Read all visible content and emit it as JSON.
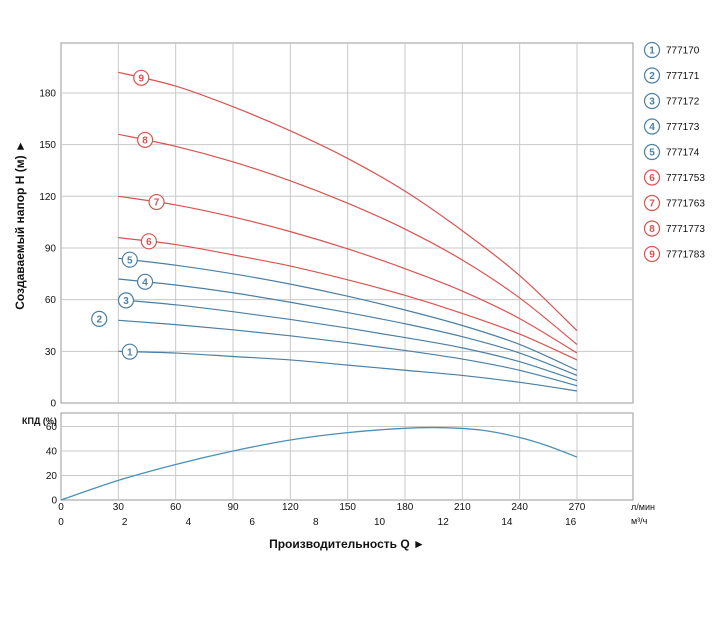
{
  "chart_data": [
    {
      "type": "line",
      "ylabel": "Создаваемый напор H (м) ►",
      "ylim": [
        0,
        200
      ],
      "yticks": [
        0,
        30,
        60,
        90,
        120,
        150,
        180
      ],
      "x_unit": "л/мин",
      "xlim": [
        0,
        270
      ],
      "xticks": [
        0,
        30,
        60,
        90,
        120,
        150,
        180,
        210,
        240,
        270
      ],
      "grid": true,
      "legend": "right",
      "series": [
        {
          "id": "1",
          "name": "777170",
          "color": "#4a7fa6",
          "x": [
            30,
            60,
            90,
            120,
            150,
            180,
            210,
            240,
            270
          ],
          "y": [
            30,
            29,
            27,
            25,
            22,
            19,
            16,
            12,
            7
          ]
        },
        {
          "id": "2",
          "name": "777171",
          "color": "#4a7fa6",
          "x": [
            30,
            60,
            90,
            120,
            150,
            180,
            210,
            240,
            270
          ],
          "y": [
            48,
            45.5,
            42.5,
            39,
            35,
            30.5,
            25.5,
            19,
            10
          ]
        },
        {
          "id": "3",
          "name": "777172",
          "color": "#4a7fa6",
          "x": [
            30,
            60,
            90,
            120,
            150,
            180,
            210,
            240,
            270
          ],
          "y": [
            60,
            57,
            53,
            48.5,
            43.5,
            38,
            32,
            24,
            13
          ]
        },
        {
          "id": "4",
          "name": "777173",
          "color": "#4a7fa6",
          "x": [
            30,
            60,
            90,
            120,
            150,
            180,
            210,
            240,
            270
          ],
          "y": [
            72,
            68.5,
            64,
            58.5,
            52.5,
            46,
            38.5,
            29,
            16
          ]
        },
        {
          "id": "5",
          "name": "777174",
          "color": "#4a7fa6",
          "x": [
            30,
            60,
            90,
            120,
            150,
            180,
            210,
            240,
            270
          ],
          "y": [
            84,
            80,
            75,
            69,
            62,
            54,
            45,
            34,
            19
          ]
        },
        {
          "id": "6",
          "name": "7771753",
          "color": "#d9534f",
          "x": [
            30,
            60,
            90,
            120,
            150,
            180,
            210,
            240,
            270
          ],
          "y": [
            96,
            92,
            86,
            79.5,
            71.5,
            62.5,
            52,
            40,
            25
          ]
        },
        {
          "id": "7",
          "name": "7771763",
          "color": "#d9534f",
          "x": [
            30,
            60,
            90,
            120,
            150,
            180,
            210,
            240,
            270
          ],
          "y": [
            120,
            115,
            108,
            99.5,
            89.5,
            78,
            65,
            49,
            29
          ]
        },
        {
          "id": "8",
          "name": "7771773",
          "color": "#d9534f",
          "x": [
            30,
            60,
            90,
            120,
            150,
            180,
            210,
            240,
            270
          ],
          "y": [
            156,
            149,
            140,
            129,
            116,
            101,
            83,
            61,
            34
          ]
        },
        {
          "id": "9",
          "name": "7771783",
          "color": "#d9534f",
          "x": [
            30,
            60,
            90,
            120,
            150,
            180,
            210,
            240,
            270
          ],
          "y": [
            192,
            184,
            172,
            158,
            142,
            123,
            100,
            74,
            42
          ]
        }
      ],
      "label_positions_x": [
        36,
        20,
        34,
        44,
        36,
        46,
        50,
        44,
        42
      ]
    },
    {
      "type": "line",
      "ylabel": "КПД (%)",
      "ylim": [
        0,
        70
      ],
      "yticks": [
        0,
        20,
        40,
        60
      ],
      "xlim": [
        0,
        270
      ],
      "xticks": [
        0,
        30,
        60,
        90,
        120,
        150,
        180,
        210,
        240,
        270
      ],
      "x_unit": "л/мин",
      "x2_unit": "м³/ч",
      "x2ticks": [
        0,
        2,
        4,
        6,
        8,
        10,
        12,
        14,
        16
      ],
      "xlabel": "Производительность Q ►",
      "grid": true,
      "series": [
        {
          "name": "",
          "color": "#4a90b8",
          "x": [
            0,
            30,
            60,
            90,
            120,
            150,
            180,
            200,
            220,
            240,
            255,
            270
          ],
          "y": [
            0,
            16,
            29,
            40,
            49,
            55,
            58.5,
            59,
            57,
            51,
            44,
            35
          ]
        }
      ]
    }
  ]
}
